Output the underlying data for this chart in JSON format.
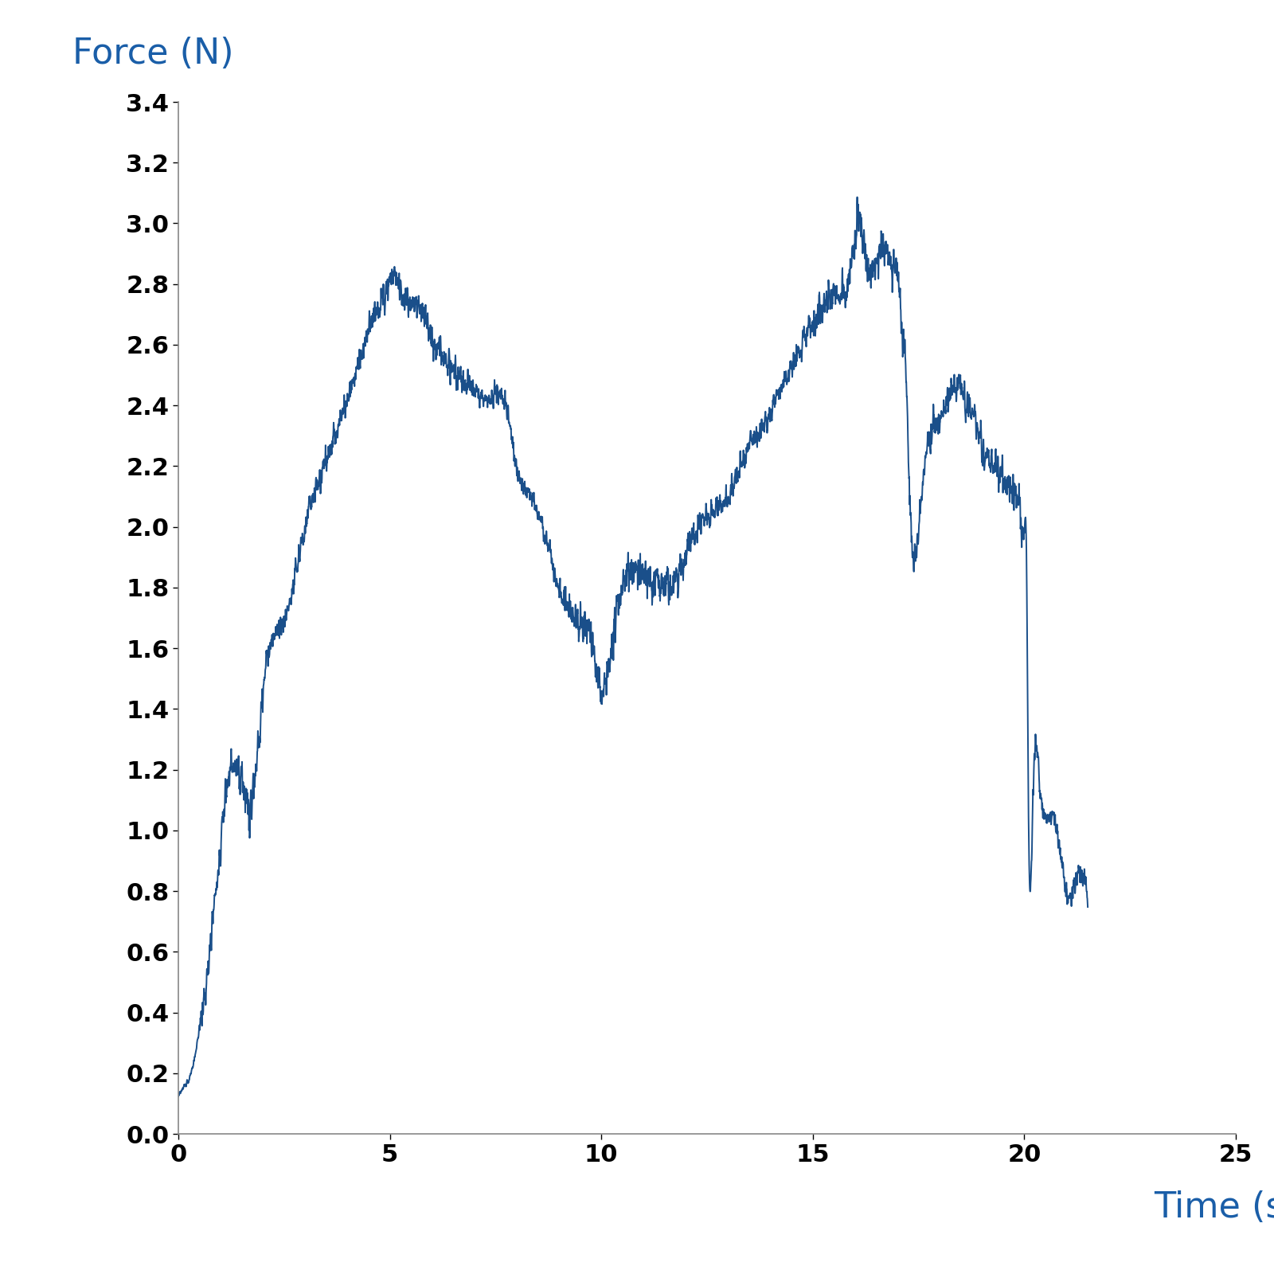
{
  "title": "",
  "xlabel": "Time (sec)",
  "ylabel": "Force (N)",
  "xlabel_color": "#1a5ea8",
  "ylabel_color": "#1a5ea8",
  "line_color": "#1a4f8a",
  "line_width": 1.4,
  "xlim": [
    0,
    25
  ],
  "ylim": [
    0.0,
    3.4
  ],
  "xticks": [
    0,
    5,
    10,
    15,
    20,
    25
  ],
  "yticks": [
    0.0,
    0.2,
    0.4,
    0.6,
    0.8,
    1.0,
    1.2,
    1.4,
    1.6,
    1.8,
    2.0,
    2.2,
    2.4,
    2.6,
    2.8,
    3.0,
    3.2,
    3.4
  ],
  "tick_fontsize": 22,
  "label_fontsize": 32,
  "background_color": "#ffffff",
  "spine_color": "#888888",
  "seed": 42,
  "duration": 21.5,
  "sample_rate": 200
}
